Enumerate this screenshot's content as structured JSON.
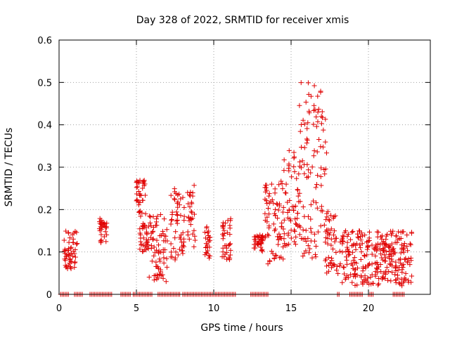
{
  "chart_data": {
    "type": "scatter",
    "title": "Day 328 of 2022, SRMTID for receiver xmis",
    "xlabel": "GPS time / hours",
    "ylabel": "SRMTID / TECUs",
    "xlim": [
      0,
      24
    ],
    "ylim": [
      0,
      0.6
    ],
    "x_ticks": [
      0,
      5,
      10,
      15,
      20
    ],
    "x_tick_labels": [
      "0",
      "5",
      "10",
      "15",
      "20"
    ],
    "y_ticks": [
      0,
      0.1,
      0.2,
      0.3,
      0.4,
      0.5,
      0.6
    ],
    "y_tick_labels": [
      "0",
      "0.1",
      "0.2",
      "0.3",
      "0.4",
      "0.5",
      "0.6"
    ],
    "grid": true,
    "marker": "plus",
    "color": "#e00000",
    "series": [
      {
        "name": "SRMTID",
        "clusters": [
          {
            "x": [
              0.3,
              1.2
            ],
            "y": [
              0.06,
              0.15
            ]
          },
          {
            "x": [
              2.6,
              3.1
            ],
            "y": [
              0.12,
              0.18
            ]
          },
          {
            "x": [
              5.0,
              5.6
            ],
            "y": [
              0.18,
              0.27
            ]
          },
          {
            "x": [
              5.2,
              5.8
            ],
            "y": [
              0.1,
              0.17
            ]
          },
          {
            "x": [
              5.8,
              7.0
            ],
            "y": [
              0.03,
              0.19
            ]
          },
          {
            "x": [
              7.2,
              8.1
            ],
            "y": [
              0.08,
              0.25
            ]
          },
          {
            "x": [
              8.3,
              8.8
            ],
            "y": [
              0.11,
              0.26
            ]
          },
          {
            "x": [
              9.4,
              9.8
            ],
            "y": [
              0.08,
              0.16
            ]
          },
          {
            "x": [
              10.5,
              11.1
            ],
            "y": [
              0.08,
              0.18
            ]
          },
          {
            "x": [
              12.6,
              13.2
            ],
            "y": [
              0.1,
              0.14
            ]
          },
          {
            "x": [
              13.3,
              14.5
            ],
            "y": [
              0.07,
              0.28
            ]
          },
          {
            "x": [
              14.5,
              15.5
            ],
            "y": [
              0.11,
              0.34
            ]
          },
          {
            "x": [
              15.5,
              17.3
            ],
            "y": [
              0.08,
              0.5
            ]
          },
          {
            "x": [
              17.2,
              18.0
            ],
            "y": [
              0.05,
              0.2
            ]
          },
          {
            "x": [
              18.0,
              22.8
            ],
            "y": [
              0.02,
              0.15
            ]
          }
        ],
        "zero_intervals": [
          [
            0.1,
            0.6
          ],
          [
            1.0,
            1.6
          ],
          [
            2.0,
            3.5
          ],
          [
            4.0,
            4.6
          ],
          [
            4.8,
            6.0
          ],
          [
            6.4,
            7.8
          ],
          [
            8.0,
            11.4
          ],
          [
            12.4,
            13.5
          ],
          [
            18.0,
            18.2
          ],
          [
            18.8,
            19.7
          ],
          [
            20.0,
            20.4
          ],
          [
            21.6,
            22.4
          ]
        ]
      }
    ]
  }
}
